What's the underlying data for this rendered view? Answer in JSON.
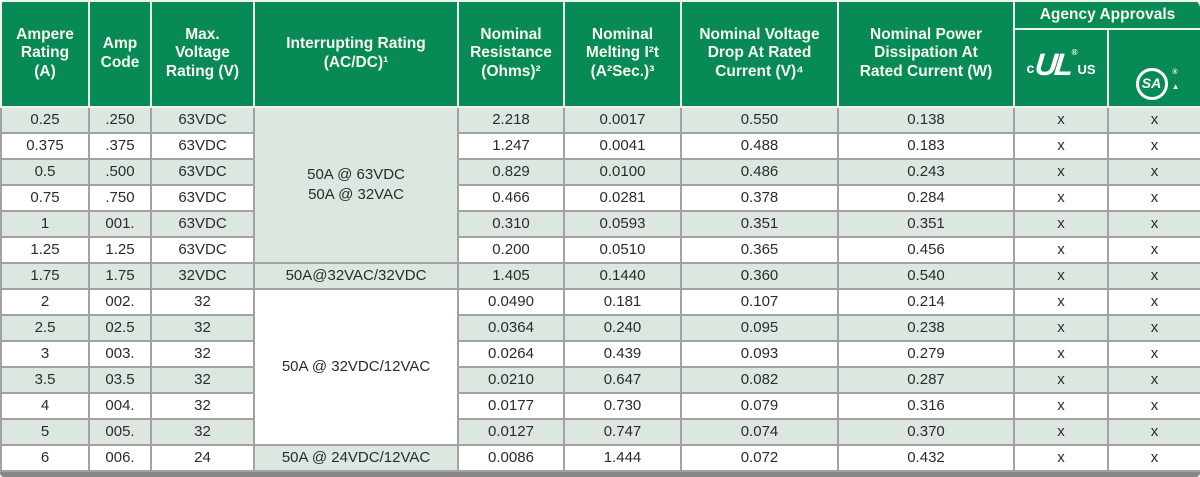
{
  "table": {
    "headers": {
      "ampere": "Ampere\nRating\n(A)",
      "amp_code": "Amp\nCode",
      "max_voltage": "Max.\nVoltage\nRating (V)",
      "interrupting": "Interrupting Rating\n(AC/DC)¹",
      "resistance": "Nominal\nResistance\n(Ohms)²",
      "melting": "Nominal\nMelting I²t\n(A²Sec.)³",
      "voltage_drop": "Nominal Voltage\nDrop At Rated\nCurrent (V)⁴",
      "power": "Nominal Power\nDissipation At\nRated Current (W)",
      "agency": "Agency Approvals"
    },
    "agency_logos": {
      "ul": {
        "prefix": "c",
        "mark": "UL",
        "registered": "®",
        "suffix": "US"
      },
      "csa": {
        "mark": "SA",
        "registered": "®",
        "triangle": "▲"
      }
    },
    "interrupt_cells": [
      {
        "row": 0,
        "span": 6,
        "text": "50A @ 63VDC\n50A @ 32VAC",
        "shaded": false
      },
      {
        "row": 6,
        "span": 1,
        "text": "50A@32VAC/32VDC",
        "shaded": true
      },
      {
        "row": 7,
        "span": 6,
        "text": "50A @ 32VDC/12VAC",
        "shaded": false
      },
      {
        "row": 13,
        "span": 1,
        "text": "50A @ 24VDC/12VAC",
        "shaded": true
      }
    ],
    "rows": [
      {
        "ampere": "0.25",
        "code": ".250",
        "voltage": "63VDC",
        "resistance": "2.218",
        "melting": "0.0017",
        "vdrop": "0.550",
        "power": "0.138",
        "ul": "x",
        "csa": "x",
        "shaded": true
      },
      {
        "ampere": "0.375",
        "code": ".375",
        "voltage": "63VDC",
        "resistance": "1.247",
        "melting": "0.0041",
        "vdrop": "0.488",
        "power": "0.183",
        "ul": "x",
        "csa": "x",
        "shaded": false
      },
      {
        "ampere": "0.5",
        "code": ".500",
        "voltage": "63VDC",
        "resistance": "0.829",
        "melting": "0.0100",
        "vdrop": "0.486",
        "power": "0.243",
        "ul": "x",
        "csa": "x",
        "shaded": true
      },
      {
        "ampere": "0.75",
        "code": ".750",
        "voltage": "63VDC",
        "resistance": "0.466",
        "melting": "0.0281",
        "vdrop": "0.378",
        "power": "0.284",
        "ul": "x",
        "csa": "x",
        "shaded": false
      },
      {
        "ampere": "1",
        "code": "001.",
        "voltage": "63VDC",
        "resistance": "0.310",
        "melting": "0.0593",
        "vdrop": "0.351",
        "power": "0.351",
        "ul": "x",
        "csa": "x",
        "shaded": true
      },
      {
        "ampere": "1.25",
        "code": "1.25",
        "voltage": "63VDC",
        "resistance": "0.200",
        "melting": "0.0510",
        "vdrop": "0.365",
        "power": "0.456",
        "ul": "x",
        "csa": "x",
        "shaded": false
      },
      {
        "ampere": "1.75",
        "code": "1.75",
        "voltage": "32VDC",
        "resistance": "1.405",
        "melting": "0.1440",
        "vdrop": "0.360",
        "power": "0.540",
        "ul": "x",
        "csa": "x",
        "shaded": true
      },
      {
        "ampere": "2",
        "code": "002.",
        "voltage": "32",
        "resistance": "0.0490",
        "melting": "0.181",
        "vdrop": "0.107",
        "power": "0.214",
        "ul": "x",
        "csa": "x",
        "shaded": false
      },
      {
        "ampere": "2.5",
        "code": "02.5",
        "voltage": "32",
        "resistance": "0.0364",
        "melting": "0.240",
        "vdrop": "0.095",
        "power": "0.238",
        "ul": "x",
        "csa": "x",
        "shaded": true
      },
      {
        "ampere": "3",
        "code": "003.",
        "voltage": "32",
        "resistance": "0.0264",
        "melting": "0.439",
        "vdrop": "0.093",
        "power": "0.279",
        "ul": "x",
        "csa": "x",
        "shaded": false
      },
      {
        "ampere": "3.5",
        "code": "03.5",
        "voltage": "32",
        "resistance": "0.0210",
        "melting": "0.647",
        "vdrop": "0.082",
        "power": "0.287",
        "ul": "x",
        "csa": "x",
        "shaded": true
      },
      {
        "ampere": "4",
        "code": "004.",
        "voltage": "32",
        "resistance": "0.0177",
        "melting": "0.730",
        "vdrop": "0.079",
        "power": "0.316",
        "ul": "x",
        "csa": "x",
        "shaded": false
      },
      {
        "ampere": "5",
        "code": "005.",
        "voltage": "32",
        "resistance": "0.0127",
        "melting": "0.747",
        "vdrop": "0.074",
        "power": "0.370",
        "ul": "x",
        "csa": "x",
        "shaded": true
      },
      {
        "ampere": "6",
        "code": "006.",
        "voltage": "24",
        "resistance": "0.0086",
        "melting": "1.444",
        "vdrop": "0.072",
        "power": "0.432",
        "ul": "x",
        "csa": "x",
        "shaded": false
      }
    ],
    "colors": {
      "header_green": "#078a55",
      "row_shaded": "#dce8df",
      "grid_gray": "#a2a2a2",
      "bottom_bar": "#868686"
    }
  }
}
